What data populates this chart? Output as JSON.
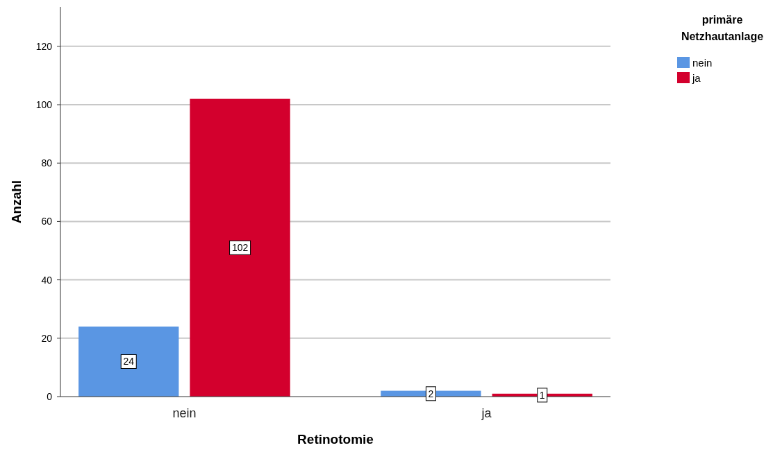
{
  "chart_data": {
    "type": "bar",
    "xlabel": "Retinotomie",
    "ylabel": "Anzahl",
    "legend_title": "primäre Netzhautanlage",
    "categories": [
      "nein",
      "ja"
    ],
    "series": [
      {
        "name": "nein",
        "color": "#5a96e3",
        "values": [
          24,
          2
        ]
      },
      {
        "name": "ja",
        "color": "#d3002d",
        "values": [
          102,
          1
        ]
      }
    ],
    "ylim": [
      0,
      133.5
    ],
    "yticks": [
      0,
      20,
      40,
      60,
      80,
      100,
      120
    ],
    "grid": "y",
    "legend": "top right",
    "data_labels": true
  }
}
